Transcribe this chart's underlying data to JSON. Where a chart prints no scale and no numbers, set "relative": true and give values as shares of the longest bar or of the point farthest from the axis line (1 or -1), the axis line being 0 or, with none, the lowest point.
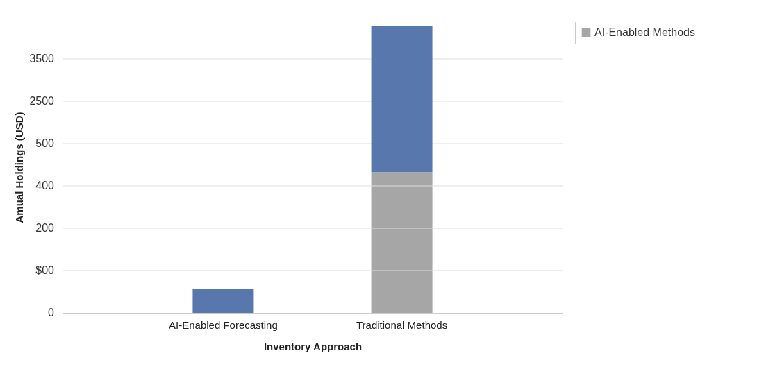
{
  "chart_data": {
    "type": "bar",
    "stacked": true,
    "relative": true,
    "xlabel": "Inventory Approach",
    "ylabel": "Amual Holdings (USD)",
    "categories": [
      "AI-Enabled Forecasting",
      "Traditional Methods"
    ],
    "series": [
      {
        "name": "AI-Enabled Methods",
        "color": "#a6a6a6",
        "values": [
          null,
          0.49
        ]
      },
      {
        "color": "#5878ad",
        "values": [
          0.083,
          0.51
        ]
      }
    ],
    "annotations": [
      "0",
      "$00",
      "200",
      "400",
      "500",
      "2500",
      "3500"
    ],
    "grid": "y",
    "legend": "right"
  }
}
